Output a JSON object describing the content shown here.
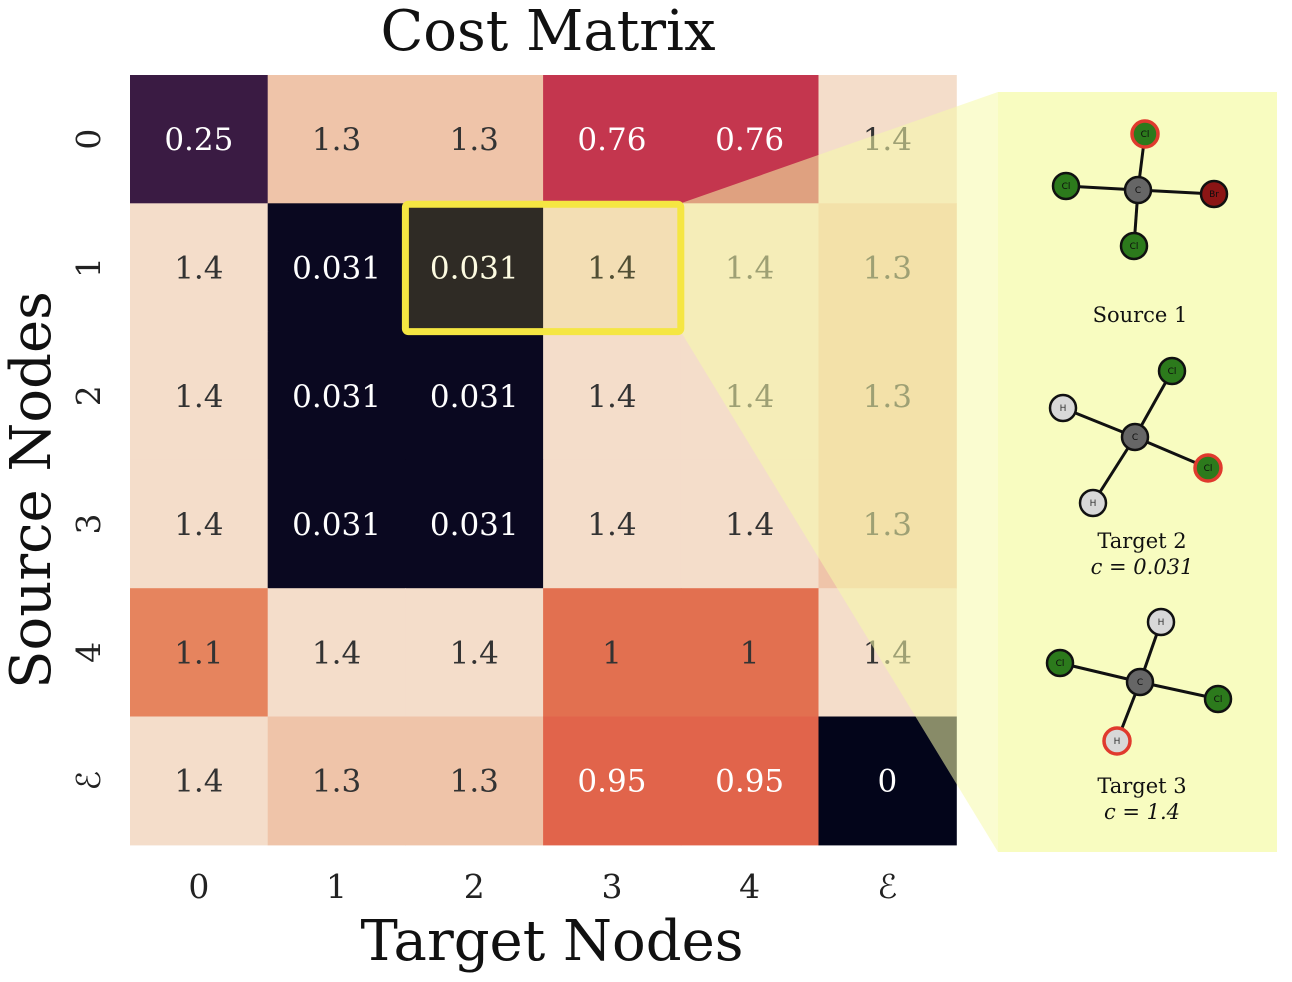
{
  "chart_data": {
    "type": "heatmap",
    "title": "Cost Matrix",
    "xlabel": "Target Nodes",
    "ylabel": "Source Nodes",
    "x_tick_labels": [
      "0",
      "1",
      "2",
      "3",
      "4",
      "ℰ"
    ],
    "y_tick_labels": [
      "0",
      "1",
      "2",
      "3",
      "4",
      "ℰ"
    ],
    "values": [
      [
        0.25,
        1.3,
        1.3,
        0.76,
        0.76,
        1.4
      ],
      [
        1.4,
        0.031,
        0.031,
        1.4,
        1.4,
        1.3
      ],
      [
        1.4,
        0.031,
        0.031,
        1.4,
        1.4,
        1.3
      ],
      [
        1.4,
        0.031,
        0.031,
        1.4,
        1.4,
        1.3
      ],
      [
        1.1,
        1.4,
        1.4,
        1,
        1,
        1.4
      ],
      [
        1.4,
        1.3,
        1.3,
        0.95,
        0.95,
        0
      ]
    ],
    "value_labels": [
      [
        "0.25",
        "1.3",
        "1.3",
        "0.76",
        "0.76",
        "1.4"
      ],
      [
        "1.4",
        "0.031",
        "0.031",
        "1.4",
        "1.4",
        "1.3"
      ],
      [
        "1.4",
        "0.031",
        "0.031",
        "1.4",
        "1.4",
        "1.3"
      ],
      [
        "1.4",
        "0.031",
        "0.031",
        "1.4",
        "1.4",
        "1.3"
      ],
      [
        "1.1",
        "1.4",
        "1.4",
        "1",
        "1",
        "1.4"
      ],
      [
        "1.4",
        "1.3",
        "1.3",
        "0.95",
        "0.95",
        "0"
      ]
    ],
    "colormap": "rocket",
    "highlight": {
      "row": 1,
      "cols": [
        2,
        3
      ],
      "color": "#f5e642"
    },
    "legend": "none",
    "grid": false
  },
  "inset": {
    "background": "#f8fcc0",
    "molecules": [
      {
        "caption": "Source 1",
        "cost": "",
        "atoms": [
          {
            "label": "C",
            "color": "#666666",
            "highlight": false
          },
          {
            "label": "Cl",
            "color": "#2c7a1c",
            "highlight": true
          },
          {
            "label": "Cl",
            "color": "#2c7a1c",
            "highlight": false
          },
          {
            "label": "Br",
            "color": "#8b1515",
            "highlight": false
          },
          {
            "label": "Cl",
            "color": "#2c7a1c",
            "highlight": false
          }
        ]
      },
      {
        "caption": "Target 2",
        "cost": "c = 0.031",
        "atoms": [
          {
            "label": "C",
            "color": "#666666",
            "highlight": false
          },
          {
            "label": "Cl",
            "color": "#2c7a1c",
            "highlight": false
          },
          {
            "label": "H",
            "color": "#d8d8d8",
            "highlight": false
          },
          {
            "label": "Cl",
            "color": "#2c7a1c",
            "highlight": true
          },
          {
            "label": "H",
            "color": "#d8d8d8",
            "highlight": false
          }
        ]
      },
      {
        "caption": "Target 3",
        "cost": "c = 1.4",
        "atoms": [
          {
            "label": "C",
            "color": "#666666",
            "highlight": false
          },
          {
            "label": "H",
            "color": "#d8d8d8",
            "highlight": false
          },
          {
            "label": "Cl",
            "color": "#2c7a1c",
            "highlight": false
          },
          {
            "label": "Cl",
            "color": "#2c7a1c",
            "highlight": false
          },
          {
            "label": "H",
            "color": "#d8d8d8",
            "highlight": true
          }
        ]
      }
    ]
  }
}
